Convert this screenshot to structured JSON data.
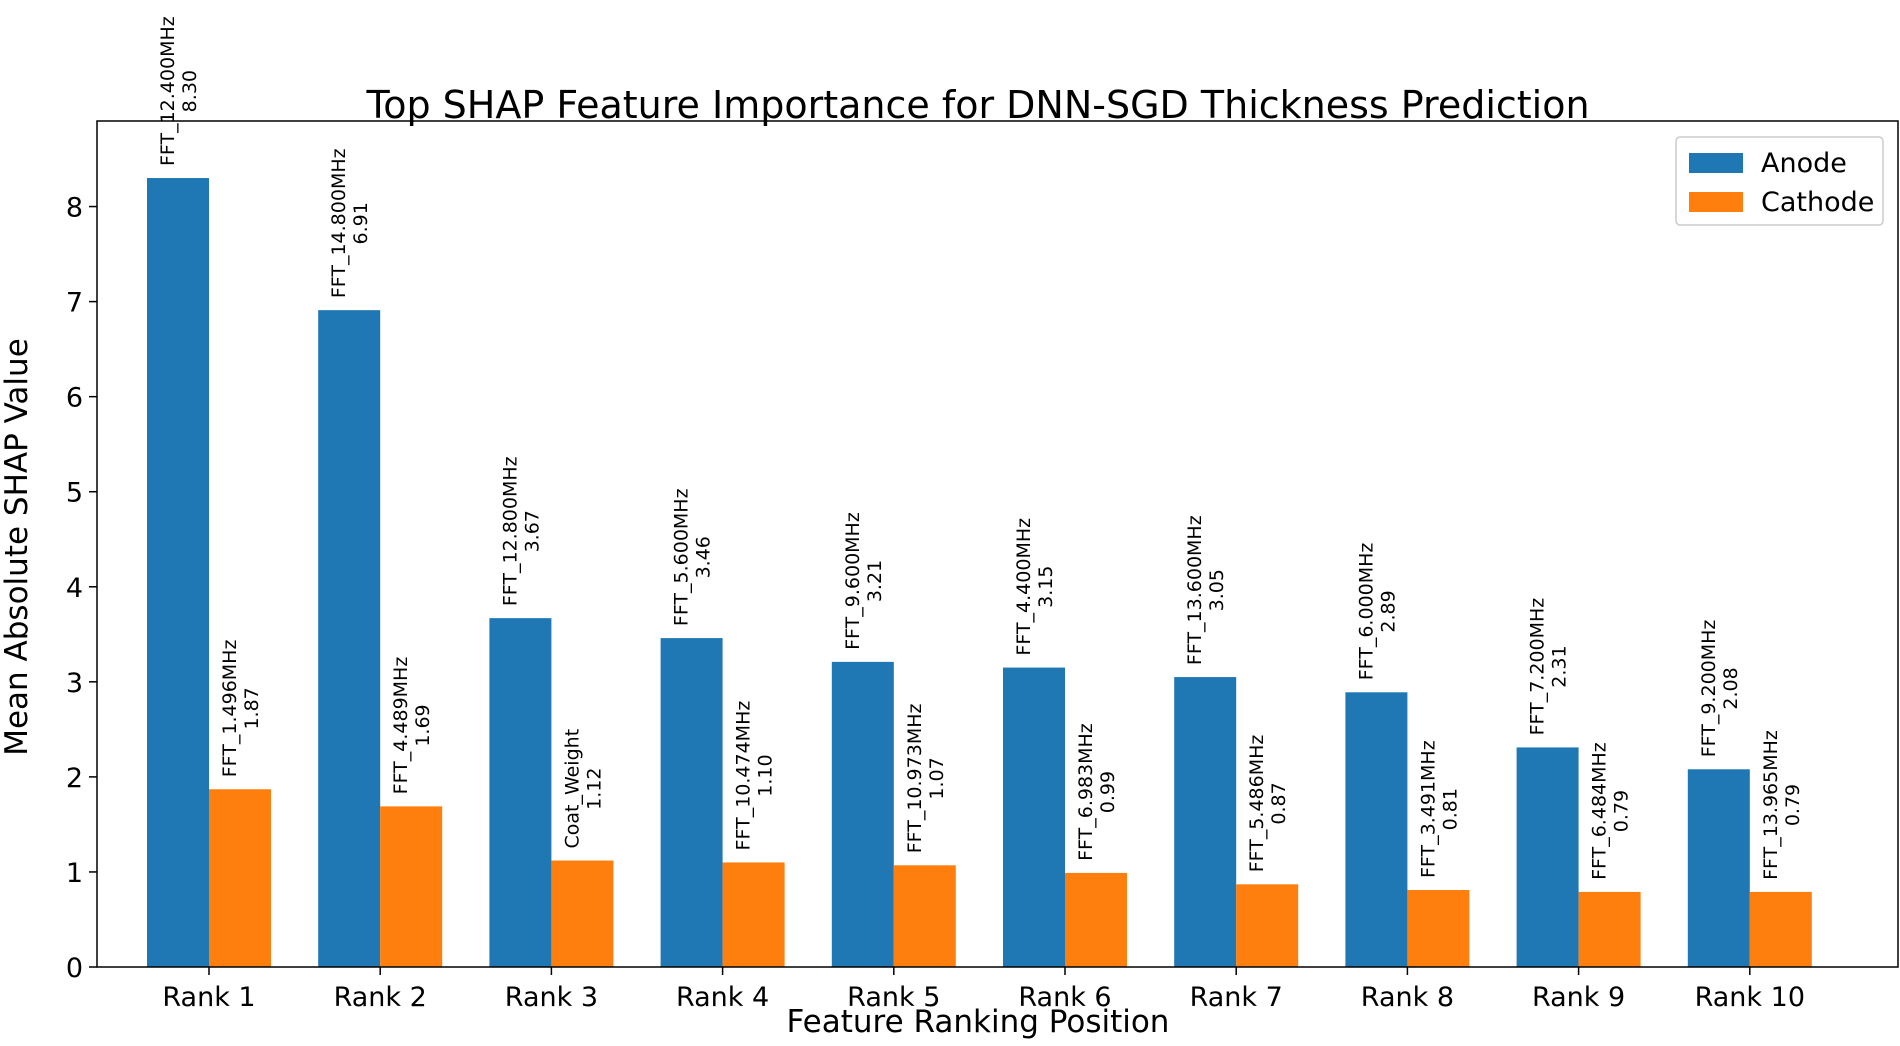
{
  "chart_data": {
    "type": "bar",
    "title": "Top SHAP Feature Importance for DNN-SGD Thickness Prediction",
    "xlabel": "Feature Ranking Position",
    "ylabel": "Mean Absolute SHAP Value",
    "categories": [
      "Rank 1",
      "Rank 2",
      "Rank 3",
      "Rank 4",
      "Rank 5",
      "Rank 6",
      "Rank 7",
      "Rank 8",
      "Rank 9",
      "Rank 10"
    ],
    "ylim": [
      0,
      8.9
    ],
    "yticks": [
      "0",
      "1",
      "2",
      "3",
      "4",
      "5",
      "6",
      "7",
      "8"
    ],
    "grid": false,
    "legend_position": "top-right",
    "series": [
      {
        "name": "Anode",
        "color": "#1f77b4",
        "values": [
          8.3,
          6.91,
          3.67,
          3.46,
          3.21,
          3.15,
          3.05,
          2.89,
          2.31,
          2.08
        ],
        "features": [
          "FFT_12.400MHz",
          "FFT_14.800MHz",
          "FFT_12.800MHz",
          "FFT_5.600MHz",
          "FFT_9.600MHz",
          "FFT_4.400MHz",
          "FFT_13.600MHz",
          "FFT_6.000MHz",
          "FFT_7.200MHz",
          "FFT_9.200MHz"
        ],
        "value_labels": [
          "8.30",
          "6.91",
          "3.67",
          "3.46",
          "3.21",
          "3.15",
          "3.05",
          "2.89",
          "2.31",
          "2.08"
        ]
      },
      {
        "name": "Cathode",
        "color": "#ff7f0e",
        "values": [
          1.87,
          1.69,
          1.12,
          1.1,
          1.07,
          0.99,
          0.87,
          0.81,
          0.79,
          0.79
        ],
        "features": [
          "FFT_1.496MHz",
          "FFT_4.489MHz",
          "Coat_Weight",
          "FFT_10.474MHz",
          "FFT_10.973MHz",
          "FFT_6.983MHz",
          "FFT_5.486MHz",
          "FFT_3.491MHz",
          "FFT_6.484MHz",
          "FFT_13.965MHz"
        ],
        "value_labels": [
          "1.87",
          "1.69",
          "1.12",
          "1.10",
          "1.07",
          "0.99",
          "0.87",
          "0.81",
          "0.79",
          "0.79"
        ]
      }
    ]
  }
}
